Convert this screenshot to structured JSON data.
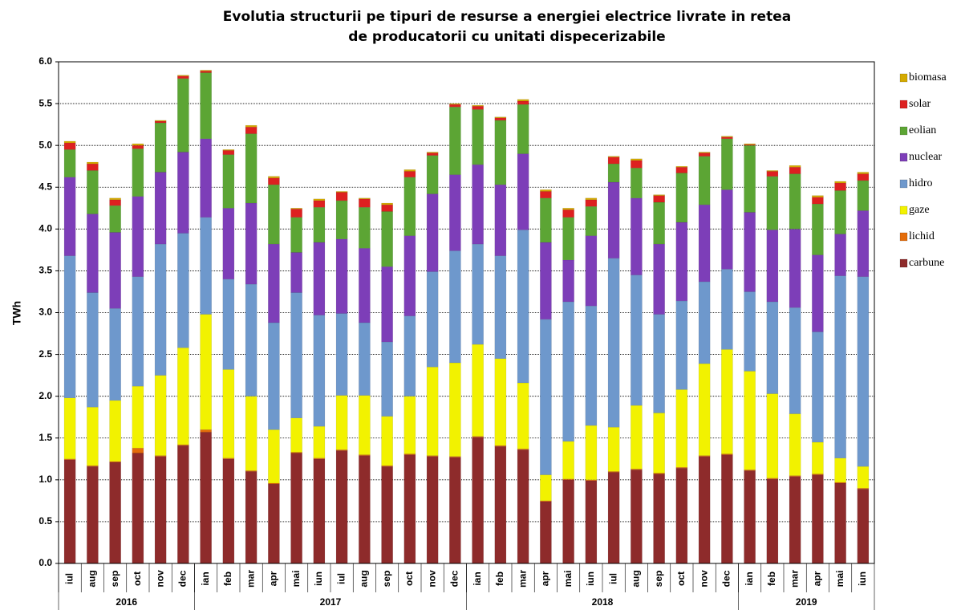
{
  "chart_data": {
    "type": "stacked_bar",
    "title": [
      "Evolutia structurii pe tipuri de resurse a energiei electrice livrate in retea",
      "de producatorii cu unitati dispecerizabile"
    ],
    "y_label": "TWh",
    "groups": [
      {
        "name": "2016",
        "categories": [
          "iul",
          "aug",
          "sep",
          "oct",
          "nov",
          "dec"
        ]
      },
      {
        "name": "2017",
        "categories": [
          "ian",
          "feb",
          "mar",
          "apr",
          "mai",
          "iun",
          "iul",
          "aug",
          "sep",
          "oct",
          "nov",
          "dec"
        ]
      },
      {
        "name": "2018",
        "categories": [
          "ian",
          "feb",
          "mar",
          "apr",
          "mai",
          "iun",
          "iul",
          "aug",
          "sep",
          "oct",
          "nov",
          "dec"
        ]
      },
      {
        "name": "2019",
        "categories": [
          "ian",
          "feb",
          "mar",
          "apr",
          "mai",
          "iun"
        ]
      }
    ],
    "ylim": [
      0,
      6
    ],
    "yticks": [
      {
        "value": 0,
        "label": "0.0"
      },
      {
        "value": 0.5,
        "label": "0.5"
      },
      {
        "value": 1,
        "label": "1.0"
      },
      {
        "value": 1.5,
        "label": "1.5"
      },
      {
        "value": 2,
        "label": "2.0"
      },
      {
        "value": 2.5,
        "label": "2.5"
      },
      {
        "value": 3,
        "label": "3.0"
      },
      {
        "value": 3.5,
        "label": "3.5"
      },
      {
        "value": 4,
        "label": "4.0"
      },
      {
        "value": 4.5,
        "label": "4.5"
      },
      {
        "value": 5,
        "label": "5.0"
      },
      {
        "value": 5.5,
        "label": "5.5"
      },
      {
        "value": 6,
        "label": "6.0"
      }
    ],
    "grid": true,
    "legend": "right",
    "series": [
      {
        "name": "carbune",
        "color": "#8e2b2b",
        "values": [
          1.24,
          1.16,
          1.21,
          1.32,
          1.28,
          1.41,
          1.57,
          1.25,
          1.1,
          0.95,
          1.32,
          1.25,
          1.35,
          1.29,
          1.16,
          1.3,
          1.28,
          1.27,
          1.51,
          1.4,
          1.36,
          0.74,
          1.0,
          0.99,
          1.09,
          1.12,
          1.07,
          1.14,
          1.28,
          1.3,
          1.11,
          1.01,
          1.04,
          1.06,
          0.96,
          0.89
        ]
      },
      {
        "name": "lichid",
        "color": "#e46c0a",
        "values": [
          0.01,
          0.01,
          0.01,
          0.06,
          0.01,
          0.01,
          0.03,
          0.01,
          0.01,
          0.01,
          0.01,
          0.01,
          0.01,
          0.01,
          0.01,
          0.01,
          0.01,
          0.01,
          0.01,
          0.01,
          0.01,
          0.01,
          0.01,
          0.01,
          0.01,
          0.01,
          0.01,
          0.01,
          0.01,
          0.01,
          0.01,
          0.01,
          0.01,
          0.01,
          0.01,
          0.01
        ]
      },
      {
        "name": "gaze",
        "color": "#f2f200",
        "values": [
          0.73,
          0.7,
          0.73,
          0.74,
          0.96,
          1.16,
          1.38,
          1.06,
          0.89,
          0.64,
          0.41,
          0.38,
          0.65,
          0.71,
          0.59,
          0.69,
          1.06,
          1.12,
          1.1,
          1.04,
          0.79,
          0.31,
          0.45,
          0.65,
          0.53,
          0.76,
          0.72,
          0.93,
          1.1,
          1.25,
          1.18,
          1.01,
          0.74,
          0.38,
          0.29,
          0.26
        ]
      },
      {
        "name": "hidro",
        "color": "#6e98cc",
        "values": [
          1.7,
          1.37,
          1.1,
          1.31,
          1.57,
          1.37,
          1.16,
          1.08,
          1.34,
          1.28,
          1.5,
          1.33,
          0.98,
          0.87,
          0.89,
          0.96,
          1.14,
          1.34,
          1.2,
          1.23,
          1.83,
          1.86,
          1.67,
          1.43,
          2.02,
          1.56,
          1.18,
          1.06,
          0.98,
          0.96,
          0.95,
          1.1,
          1.27,
          1.32,
          2.18,
          2.27
        ]
      },
      {
        "name": "nuclear",
        "color": "#7d3eb8",
        "values": [
          0.94,
          0.94,
          0.91,
          0.96,
          0.86,
          0.97,
          0.94,
          0.85,
          0.97,
          0.94,
          0.48,
          0.87,
          0.89,
          0.89,
          0.9,
          0.96,
          0.93,
          0.91,
          0.95,
          0.85,
          0.91,
          0.92,
          0.5,
          0.84,
          0.91,
          0.92,
          0.84,
          0.94,
          0.92,
          0.95,
          0.95,
          0.86,
          0.94,
          0.92,
          0.5,
          0.79
        ]
      },
      {
        "name": "eolian",
        "color": "#5ca534",
        "values": [
          0.33,
          0.52,
          0.32,
          0.57,
          0.59,
          0.88,
          0.79,
          0.64,
          0.83,
          0.71,
          0.42,
          0.42,
          0.46,
          0.49,
          0.66,
          0.7,
          0.46,
          0.81,
          0.66,
          0.77,
          0.59,
          0.53,
          0.51,
          0.35,
          0.22,
          0.36,
          0.5,
          0.59,
          0.58,
          0.61,
          0.8,
          0.64,
          0.66,
          0.61,
          0.52,
          0.36
        ]
      },
      {
        "name": "solar",
        "color": "#dd2020",
        "values": [
          0.08,
          0.08,
          0.07,
          0.04,
          0.02,
          0.03,
          0.02,
          0.05,
          0.08,
          0.08,
          0.1,
          0.08,
          0.1,
          0.1,
          0.08,
          0.07,
          0.03,
          0.03,
          0.04,
          0.03,
          0.04,
          0.08,
          0.09,
          0.08,
          0.08,
          0.09,
          0.08,
          0.07,
          0.04,
          0.02,
          0.01,
          0.06,
          0.08,
          0.08,
          0.09,
          0.08
        ]
      },
      {
        "name": "biomasa",
        "color": "#d4aa00",
        "values": [
          0.02,
          0.02,
          0.02,
          0.02,
          0.01,
          0.01,
          0.01,
          0.01,
          0.02,
          0.02,
          0.01,
          0.02,
          0.01,
          0.01,
          0.02,
          0.02,
          0.01,
          0.01,
          0.01,
          0.01,
          0.02,
          0.02,
          0.02,
          0.02,
          0.01,
          0.02,
          0.01,
          0.01,
          0.01,
          0.01,
          0.01,
          0.01,
          0.02,
          0.02,
          0.02,
          0.02
        ]
      }
    ]
  }
}
